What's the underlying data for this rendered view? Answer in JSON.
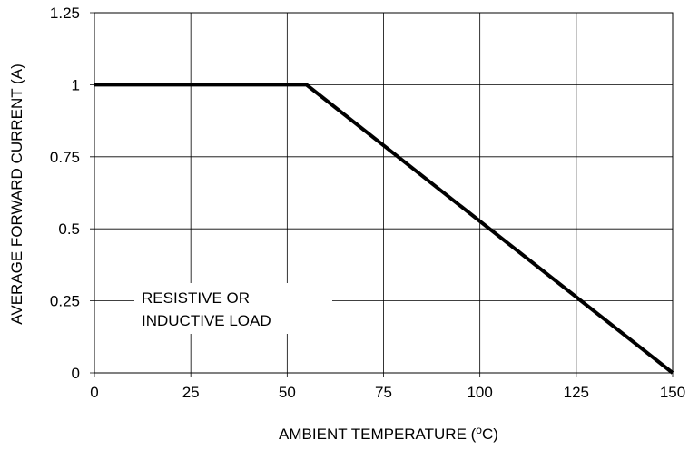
{
  "chart_data": {
    "type": "line",
    "title": "",
    "xlabel": "AMBIENT TEMPERATURE (",
    "xlabel_sup": "o",
    "xlabel_end": "C)",
    "ylabel": "AVERAGE FORWARD CURRENT (A)",
    "xlim": [
      0,
      150
    ],
    "ylim": [
      0,
      1.25
    ],
    "xticks": [
      "0",
      "25",
      "50",
      "75",
      "100",
      "125",
      "150"
    ],
    "yticks": [
      "0",
      "0.25",
      "0.5",
      "0.75",
      "1",
      "1.25"
    ],
    "grid": true,
    "series": [
      {
        "x": [
          0,
          55,
          150
        ],
        "y": [
          1,
          1,
          0
        ]
      }
    ],
    "annotation": {
      "line1": "RESISTIVE OR",
      "line2": "INDUCTIVE LOAD"
    }
  }
}
